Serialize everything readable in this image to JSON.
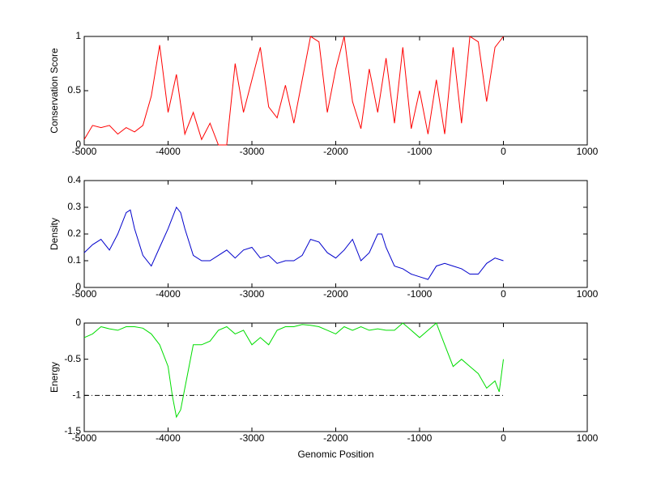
{
  "chart_data": [
    {
      "type": "line",
      "ylabel": "Conservation Score",
      "color": "#ff0000",
      "x": [
        -5000,
        -4900,
        -4800,
        -4700,
        -4600,
        -4500,
        -4400,
        -4300,
        -4200,
        -4100,
        -4000,
        -3900,
        -3800,
        -3700,
        -3600,
        -3500,
        -3400,
        -3300,
        -3200,
        -3100,
        -3000,
        -2900,
        -2800,
        -2700,
        -2600,
        -2500,
        -2400,
        -2300,
        -2200,
        -2100,
        -2000,
        -1900,
        -1800,
        -1700,
        -1600,
        -1500,
        -1400,
        -1300,
        -1200,
        -1100,
        -1000,
        -900,
        -800,
        -700,
        -600,
        -500,
        -400,
        -300,
        -200,
        -100,
        0
      ],
      "values": [
        0.05,
        0.18,
        0.16,
        0.18,
        0.1,
        0.16,
        0.12,
        0.18,
        0.45,
        0.92,
        0.3,
        0.65,
        0.1,
        0.3,
        0.05,
        0.2,
        0,
        0,
        0.75,
        0.3,
        0.6,
        0.9,
        0.35,
        0.25,
        0.55,
        0.2,
        0.6,
        1,
        0.95,
        0.3,
        0.7,
        1,
        0.4,
        0.15,
        0.7,
        0.3,
        0.8,
        0.2,
        0.9,
        0.15,
        0.5,
        0.1,
        0.6,
        0.1,
        0.9,
        0.2,
        1,
        0.95,
        0.4,
        0.9,
        1
      ],
      "xlim": [
        -5000,
        1000
      ],
      "xticks": [
        -5000,
        -4000,
        -3000,
        -2000,
        -1000,
        0,
        1000
      ],
      "ylim": [
        0,
        1
      ],
      "yticks": [
        0,
        0.5,
        1
      ]
    },
    {
      "type": "line",
      "ylabel": "Density",
      "color": "#0000cc",
      "x": [
        -5000,
        -4900,
        -4800,
        -4700,
        -4600,
        -4500,
        -4450,
        -4400,
        -4300,
        -4200,
        -4100,
        -4000,
        -3900,
        -3850,
        -3800,
        -3700,
        -3600,
        -3500,
        -3400,
        -3300,
        -3200,
        -3100,
        -3000,
        -2900,
        -2800,
        -2700,
        -2600,
        -2500,
        -2400,
        -2300,
        -2200,
        -2100,
        -2000,
        -1900,
        -1800,
        -1700,
        -1600,
        -1500,
        -1450,
        -1400,
        -1300,
        -1200,
        -1100,
        -1000,
        -900,
        -800,
        -700,
        -600,
        -500,
        -400,
        -300,
        -200,
        -100,
        0
      ],
      "values": [
        0.13,
        0.16,
        0.18,
        0.14,
        0.2,
        0.28,
        0.29,
        0.22,
        0.12,
        0.08,
        0.15,
        0.22,
        0.3,
        0.28,
        0.22,
        0.12,
        0.1,
        0.1,
        0.12,
        0.14,
        0.11,
        0.14,
        0.15,
        0.11,
        0.12,
        0.09,
        0.1,
        0.1,
        0.12,
        0.18,
        0.17,
        0.13,
        0.11,
        0.14,
        0.18,
        0.1,
        0.13,
        0.2,
        0.2,
        0.15,
        0.08,
        0.07,
        0.05,
        0.04,
        0.03,
        0.08,
        0.09,
        0.08,
        0.07,
        0.05,
        0.05,
        0.09,
        0.11,
        0.1
      ],
      "xlim": [
        -5000,
        1000
      ],
      "xticks": [
        -5000,
        -4000,
        -3000,
        -2000,
        -1000,
        0,
        1000
      ],
      "ylim": [
        0,
        0.4
      ],
      "yticks": [
        0,
        0.1,
        0.2,
        0.3,
        0.4
      ]
    },
    {
      "type": "line",
      "ylabel": "Energy",
      "xlabel": "Genomic Position",
      "color": "#00dd00",
      "hline": -1,
      "x": [
        -5000,
        -4900,
        -4800,
        -4700,
        -4600,
        -4500,
        -4400,
        -4300,
        -4200,
        -4100,
        -4000,
        -3950,
        -3900,
        -3850,
        -3800,
        -3750,
        -3700,
        -3600,
        -3500,
        -3400,
        -3300,
        -3200,
        -3100,
        -3000,
        -2900,
        -2800,
        -2700,
        -2600,
        -2500,
        -2400,
        -2300,
        -2200,
        -2100,
        -2000,
        -1900,
        -1800,
        -1700,
        -1600,
        -1500,
        -1400,
        -1300,
        -1200,
        -1100,
        -1000,
        -900,
        -800,
        -700,
        -600,
        -500,
        -400,
        -300,
        -200,
        -100,
        -50,
        0
      ],
      "values": [
        -0.2,
        -0.15,
        -0.05,
        -0.08,
        -0.1,
        -0.05,
        -0.05,
        -0.07,
        -0.15,
        -0.3,
        -0.6,
        -1,
        -1.3,
        -1.2,
        -0.9,
        -0.6,
        -0.3,
        -0.3,
        -0.25,
        -0.1,
        -0.05,
        -0.15,
        -0.1,
        -0.3,
        -0.2,
        -0.3,
        -0.1,
        -0.05,
        -0.05,
        -0.02,
        -0.03,
        -0.05,
        -0.1,
        -0.15,
        -0.05,
        -0.1,
        -0.05,
        -0.1,
        -0.08,
        -0.1,
        -0.1,
        0,
        -0.1,
        -0.2,
        -0.1,
        0,
        -0.3,
        -0.6,
        -0.5,
        -0.6,
        -0.7,
        -0.9,
        -0.8,
        -0.95,
        -0.5
      ],
      "xlim": [
        -5000,
        1000
      ],
      "xticks": [
        -5000,
        -4000,
        -3000,
        -2000,
        -1000,
        0,
        1000
      ],
      "ylim": [
        -1.5,
        0
      ],
      "yticks": [
        -1.5,
        -1,
        -0.5,
        0
      ]
    }
  ]
}
